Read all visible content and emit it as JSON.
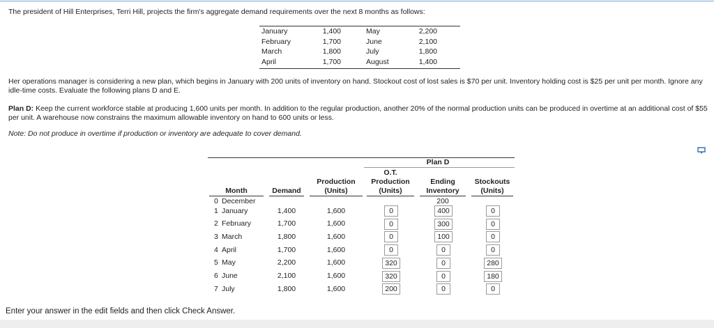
{
  "intro": "The president of Hill Enterprises, Terri Hill, projects the firm's aggregate demand requirements over the next 8 months as follows:",
  "demand_table": {
    "rows": [
      [
        "January",
        "1,400",
        "May",
        "2,200"
      ],
      [
        "February",
        "1,700",
        "June",
        "2,100"
      ],
      [
        "March",
        "1,800",
        "July",
        "1,800"
      ],
      [
        "April",
        "1,700",
        "August",
        "1,400"
      ]
    ]
  },
  "paragraph": "Her operations manager is considering a new plan, which begins in January with 200 units of inventory on hand. Stockout cost of lost sales is $70 per unit. Inventory holding cost is $25 per unit per month. Ignore any idle-time costs. Evaluate the following plans D and E.",
  "plan_d": {
    "label": "Plan D:",
    "text": "Keep the current workforce stable at producing 1,600 units per month. In addition to the regular production, another 20% of the normal production units can be produced in overtime at an additional cost of $55 per unit. A warehouse now constrains the maximum allowable inventory on hand to 600 units or less."
  },
  "note": "Note: Do not produce in overtime if production or inventory are adequate to cover demand.",
  "table": {
    "group_header": "Plan D",
    "headers": [
      [
        "Month"
      ],
      [
        "Demand"
      ],
      [
        "Production",
        "(Units)"
      ],
      [
        "O.T.",
        "Production",
        "(Units)"
      ],
      [
        "Ending",
        "Inventory"
      ],
      [
        "Stockouts",
        "(Units)"
      ]
    ],
    "rows": [
      [
        "0",
        "December",
        null,
        null,
        null,
        "200",
        null
      ],
      [
        "1",
        "January",
        "1,400",
        "1,600",
        "0",
        "400",
        "0"
      ],
      [
        "2",
        "February",
        "1,700",
        "1,600",
        "0",
        "300",
        "0"
      ],
      [
        "3",
        "March",
        "1,800",
        "1,600",
        "0",
        "100",
        "0"
      ],
      [
        "4",
        "April",
        "1,700",
        "1,600",
        "0",
        "0",
        "0"
      ],
      [
        "5",
        "May",
        "2,200",
        "1,600",
        "320",
        "0",
        "280"
      ],
      [
        "6",
        "June",
        "2,100",
        "1,600",
        "320",
        "0",
        "180"
      ],
      [
        "7",
        "July",
        "1,800",
        "1,600",
        "200",
        "0",
        "0"
      ]
    ]
  },
  "footer": "Enter your answer in the edit fields and then click Check Answer."
}
